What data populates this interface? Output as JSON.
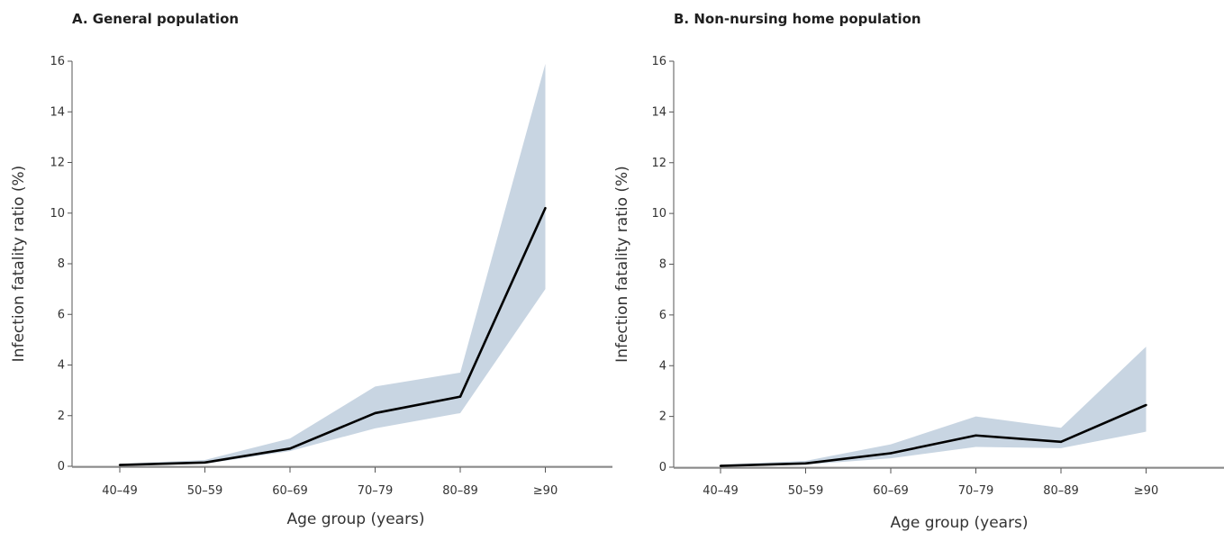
{
  "chart_data": [
    {
      "type": "line",
      "title": "A. General population",
      "xlabel": "Age group (years)",
      "ylabel": "Infection fatality ratio (%)",
      "ylim": [
        0,
        16
      ],
      "yticks": [
        0,
        2,
        4,
        6,
        8,
        10,
        12,
        14,
        16
      ],
      "categories": [
        "40–49",
        "50–59",
        "60–69",
        "70–79",
        "80–89",
        "≥90"
      ],
      "series": [
        {
          "values": [
            0.05,
            0.15,
            0.7,
            2.1,
            2.75,
            10.2
          ]
        }
      ],
      "interval": {
        "lower": [
          0.02,
          0.1,
          0.6,
          1.5,
          2.1,
          7.0
        ],
        "upper": [
          0.1,
          0.25,
          1.1,
          3.15,
          3.7,
          15.9
        ]
      },
      "colors": {
        "line": "#000000",
        "band": "#c8d5e2",
        "axis": "#555555"
      }
    },
    {
      "type": "line",
      "title": "B. Non-nursing home population",
      "xlabel": "Age group (years)",
      "ylabel": "Infection fatality ratio (%)",
      "ylim": [
        0,
        16
      ],
      "yticks": [
        0,
        2,
        4,
        6,
        8,
        10,
        12,
        14,
        16
      ],
      "categories": [
        "40–49",
        "50–59",
        "60–69",
        "70–79",
        "80–89",
        "≥90"
      ],
      "series": [
        {
          "values": [
            0.05,
            0.15,
            0.55,
            1.25,
            1.0,
            2.45
          ]
        }
      ],
      "interval": {
        "lower": [
          0.02,
          0.1,
          0.35,
          0.8,
          0.75,
          1.4
        ],
        "upper": [
          0.1,
          0.25,
          0.9,
          2.0,
          1.55,
          4.75
        ]
      },
      "colors": {
        "line": "#000000",
        "band": "#c8d5e2",
        "axis": "#555555"
      }
    }
  ]
}
